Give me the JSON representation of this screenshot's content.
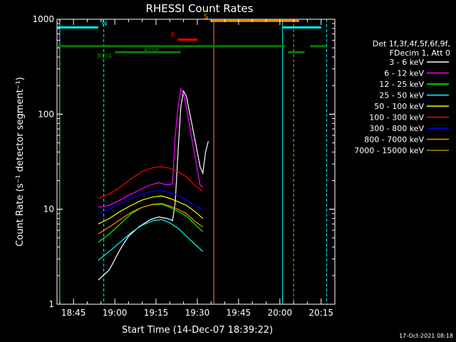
{
  "chart_data": {
    "type": "line",
    "title": "RHESSI Count Rates",
    "xlabel": "Start Time (14-Dec-07 18:39:22)",
    "ylabel": "Count Rate (s⁻¹ detector segment⁻¹)",
    "xlim": [
      "18:39",
      "20:20"
    ],
    "ylim": [
      1,
      1000
    ],
    "yscale": "log",
    "x_ticks": [
      "18:45",
      "19:00",
      "19:15",
      "19:30",
      "19:45",
      "20:00",
      "20:15"
    ],
    "y_ticks": [
      "1",
      "10",
      "100",
      "1000"
    ],
    "grid": false,
    "legend_position": "right",
    "legend_header": [
      "Det 1f,3f,4f,5f,6f,9f,",
      "FDecim 1, Att 0"
    ],
    "series": [
      {
        "name": "3 - 6 keV",
        "color": "#ffffff",
        "points": [
          [
            "18:54",
            1.8
          ],
          [
            "18:58",
            2.3
          ],
          [
            "19:02",
            3.8
          ],
          [
            "19:05",
            5.2
          ],
          [
            "19:09",
            6.6
          ],
          [
            "19:13",
            7.8
          ],
          [
            "19:16",
            8.3
          ],
          [
            "19:19",
            8.0
          ],
          [
            "19:21",
            7.6
          ],
          [
            "19:22",
            12
          ],
          [
            "19:23",
            40
          ],
          [
            "19:24",
            120
          ],
          [
            "19:25",
            175
          ],
          [
            "19:26",
            155
          ],
          [
            "19:28",
            80
          ],
          [
            "19:30",
            40
          ],
          [
            "19:31",
            28
          ],
          [
            "19:32",
            24
          ],
          [
            "19:33",
            40
          ],
          [
            "19:34",
            52
          ]
        ]
      },
      {
        "name": "6 - 12 keV",
        "color": "#ff00ff",
        "points": [
          [
            "18:54",
            10.5
          ],
          [
            "18:58",
            11
          ],
          [
            "19:02",
            12.5
          ],
          [
            "19:05",
            14
          ],
          [
            "19:09",
            16
          ],
          [
            "19:13",
            18
          ],
          [
            "19:16",
            19
          ],
          [
            "19:19",
            18
          ],
          [
            "19:21",
            18.5
          ],
          [
            "19:22",
            60
          ],
          [
            "19:23",
            120
          ],
          [
            "19:24",
            185
          ],
          [
            "19:25",
            165
          ],
          [
            "19:26",
            120
          ],
          [
            "19:28",
            55
          ],
          [
            "19:30",
            26
          ],
          [
            "19:31",
            18
          ],
          [
            "19:32",
            17
          ]
        ]
      },
      {
        "name": "12 - 25 keV",
        "color": "#00ff00",
        "points": [
          [
            "18:54",
            4.5
          ],
          [
            "18:58",
            5.5
          ],
          [
            "19:02",
            7
          ],
          [
            "19:06",
            9
          ],
          [
            "19:10",
            10.5
          ],
          [
            "19:14",
            11.2
          ],
          [
            "19:17",
            11.3
          ],
          [
            "19:20",
            10.5
          ],
          [
            "19:23",
            9.5
          ],
          [
            "19:26",
            8.5
          ],
          [
            "19:29",
            7
          ],
          [
            "19:32",
            5.8
          ]
        ]
      },
      {
        "name": "25 - 50 keV",
        "color": "#00ffff",
        "points": [
          [
            "18:54",
            2.9
          ],
          [
            "18:58",
            3.6
          ],
          [
            "19:02",
            4.5
          ],
          [
            "19:06",
            5.7
          ],
          [
            "19:10",
            6.8
          ],
          [
            "19:14",
            7.6
          ],
          [
            "19:17",
            7.8
          ],
          [
            "19:20",
            7.2
          ],
          [
            "19:23",
            6.3
          ],
          [
            "19:26",
            5.2
          ],
          [
            "19:29",
            4.3
          ],
          [
            "19:32",
            3.6
          ]
        ]
      },
      {
        "name": "50 - 100 keV",
        "color": "#ffff00",
        "points": [
          [
            "18:54",
            7
          ],
          [
            "18:58",
            8
          ],
          [
            "19:02",
            9.5
          ],
          [
            "19:06",
            11
          ],
          [
            "19:10",
            12.5
          ],
          [
            "19:14",
            13.5
          ],
          [
            "19:17",
            13.8
          ],
          [
            "19:20",
            13
          ],
          [
            "19:23",
            12
          ],
          [
            "19:26",
            11
          ],
          [
            "19:29",
            9.5
          ],
          [
            "19:32",
            8
          ]
        ]
      },
      {
        "name": "100 - 300 keV",
        "color": "#ff0000",
        "points": [
          [
            "18:54",
            13
          ],
          [
            "18:58",
            14.5
          ],
          [
            "19:02",
            17
          ],
          [
            "19:06",
            21
          ],
          [
            "19:10",
            25
          ],
          [
            "19:14",
            27.5
          ],
          [
            "19:17",
            28
          ],
          [
            "19:20",
            27
          ],
          [
            "19:23",
            25
          ],
          [
            "19:26",
            22
          ],
          [
            "19:29",
            18
          ],
          [
            "19:32",
            15.5
          ]
        ]
      },
      {
        "name": "300 - 800 keV",
        "color": "#0000ff",
        "points": [
          [
            "18:54",
            9
          ],
          [
            "18:58",
            10
          ],
          [
            "19:02",
            11.5
          ],
          [
            "19:06",
            13
          ],
          [
            "19:10",
            14.5
          ],
          [
            "19:14",
            15.5
          ],
          [
            "19:17",
            15.8
          ],
          [
            "19:20",
            15
          ],
          [
            "19:23",
            14
          ],
          [
            "19:26",
            12.5
          ],
          [
            "19:29",
            11
          ],
          [
            "19:32",
            9.8
          ]
        ]
      },
      {
        "name": "800 - 7000 keV",
        "color": "#ff8c00",
        "points": [
          [
            "18:54",
            5.5
          ],
          [
            "18:58",
            6.5
          ],
          [
            "19:02",
            7.8
          ],
          [
            "19:06",
            9.3
          ],
          [
            "19:10",
            10.5
          ],
          [
            "19:14",
            11.3
          ],
          [
            "19:17",
            11.5
          ],
          [
            "19:20",
            10.8
          ],
          [
            "19:23",
            10
          ],
          [
            "19:26",
            9
          ],
          [
            "19:29",
            7.5
          ],
          [
            "19:32",
            6.5
          ]
        ]
      },
      {
        "name": "7000 - 15000 keV",
        "color": "#b8860b",
        "points": []
      }
    ],
    "state_bars": [
      {
        "label": "N",
        "color": "#00ffff",
        "y_level": 820,
        "segments": [
          [
            "18:39",
            "18:54"
          ],
          [
            "20:01",
            "20:15"
          ]
        ]
      },
      {
        "label": "RD0",
        "color": "#008000",
        "y_level": 520,
        "segments": [
          [
            "18:39",
            "20:02"
          ],
          [
            "20:11",
            "20:17"
          ]
        ]
      },
      {
        "label": "RD4",
        "color": "#008000",
        "y_level": 450,
        "segments": [
          [
            "19:00",
            "19:24"
          ],
          [
            "20:03",
            "20:09"
          ]
        ]
      },
      {
        "label": "F",
        "color": "#ff0000",
        "y_level": 610,
        "segments": [
          [
            "19:23",
            "19:30"
          ]
        ]
      },
      {
        "label": "S",
        "color": "#ff8c00",
        "y_level": 960,
        "segments": [
          [
            "19:35",
            "20:07"
          ]
        ]
      }
    ],
    "vlines": [
      {
        "x": "18:40",
        "color": "#00ffff",
        "style": "solid"
      },
      {
        "x": "18:56",
        "color": "#00ffff",
        "style": "dashed"
      },
      {
        "x": "19:36",
        "color": "#ff8c00",
        "style": "solid"
      },
      {
        "x": "20:01",
        "color": "#00ffff",
        "style": "solid"
      },
      {
        "x": "20:05",
        "color": "#ff8c00",
        "style": "dashed"
      },
      {
        "x": "20:17",
        "color": "#00ffff",
        "style": "dashed"
      }
    ]
  },
  "timestamp": "17-Oct-2021 08:18"
}
